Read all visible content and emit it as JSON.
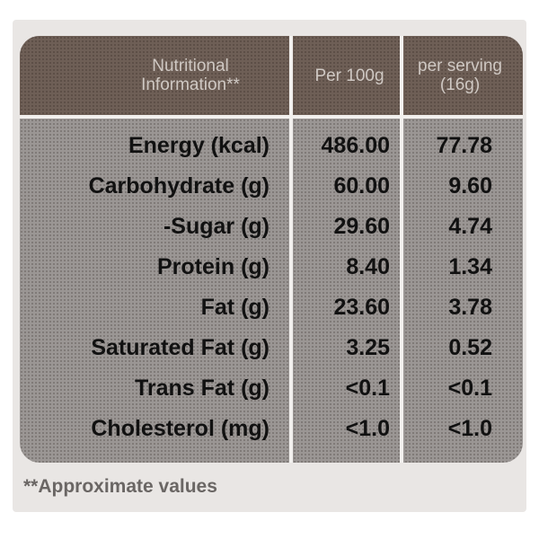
{
  "table": {
    "header": [
      "Nutritional Information**",
      "Per 100g",
      "per serving (16g)"
    ],
    "rows": [
      [
        "Energy (kcal)",
        "486.00",
        "77.78"
      ],
      [
        "Carbohydrate (g)",
        "60.00",
        "9.60"
      ],
      [
        "-Sugar (g)",
        "29.60",
        "4.74"
      ],
      [
        "Protein (g)",
        "8.40",
        "1.34"
      ],
      [
        "Fat (g)",
        "23.60",
        "3.78"
      ],
      [
        "Saturated Fat (g)",
        "3.25",
        "0.52"
      ],
      [
        "Trans Fat (g)",
        "<0.1",
        "<0.1"
      ],
      [
        "Cholesterol (mg)",
        "<1.0",
        "<1.0"
      ]
    ]
  },
  "footnote": "**Approximate values"
}
